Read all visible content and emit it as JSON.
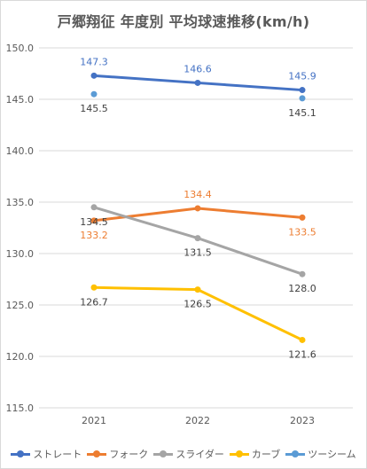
{
  "chart_data": {
    "type": "line",
    "title": "戸郷翔征 年度別 平均球速推移(km/h)",
    "categories": [
      "2021",
      "2022",
      "2023"
    ],
    "ylim": [
      115.0,
      150.0
    ],
    "yticks": [
      "115.0",
      "120.0",
      "125.0",
      "130.0",
      "135.0",
      "140.0",
      "145.0",
      "150.0"
    ],
    "grid": true,
    "legend_position": "bottom",
    "series": [
      {
        "name": "ストレート",
        "color": "#4472C4",
        "values": [
          147.3,
          146.6,
          145.9
        ],
        "labels": [
          "147.3",
          "146.6",
          "145.9"
        ],
        "label_color": "#4472C4",
        "line": true
      },
      {
        "name": "フォーク",
        "color": "#ED7D31",
        "values": [
          133.2,
          134.4,
          133.5
        ],
        "labels": [
          "133.2",
          "134.4",
          "133.5"
        ],
        "label_color": "#ED7D31",
        "line": true
      },
      {
        "name": "スライダー",
        "color": "#A5A5A5",
        "values": [
          134.5,
          131.5,
          128.0
        ],
        "labels": [
          "134.5",
          "131.5",
          "128.0"
        ],
        "label_color": "#404040",
        "line": true
      },
      {
        "name": "カーブ",
        "color": "#FFC000",
        "values": [
          126.7,
          126.5,
          121.6
        ],
        "labels": [
          "126.7",
          "126.5",
          "121.6"
        ],
        "label_color": "#404040",
        "line": true
      },
      {
        "name": "ツーシーム",
        "color": "#5B9BD5",
        "values": [
          145.5,
          null,
          145.1
        ],
        "labels": [
          "145.5",
          "",
          "145.1"
        ],
        "label_color": "#404040",
        "line": false
      }
    ]
  }
}
